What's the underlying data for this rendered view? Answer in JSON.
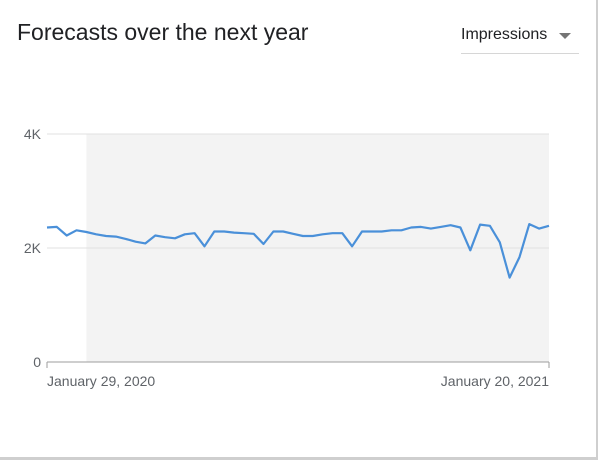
{
  "card": {
    "title": "Forecasts over the next year",
    "metric_select": {
      "selected": "Impressions",
      "icon": "caret-down-icon"
    }
  },
  "chart_data": {
    "type": "line",
    "title": "",
    "xlabel": "",
    "ylabel": "",
    "ylim": [
      0,
      4000
    ],
    "y_ticks": [
      {
        "value": 4000,
        "label": "4K"
      },
      {
        "value": 2000,
        "label": "2K"
      },
      {
        "value": 0,
        "label": "0"
      }
    ],
    "x_tick_labels": [
      "January 29, 2020",
      "January 20, 2021"
    ],
    "forecast_shading_start_index": 4,
    "grid": true,
    "legend": "none",
    "series": [
      {
        "color": "#4a90d9",
        "values": [
          2360,
          2370,
          2220,
          2310,
          2280,
          2240,
          2210,
          2200,
          2160,
          2110,
          2080,
          2220,
          2190,
          2170,
          2240,
          2260,
          2030,
          2290,
          2290,
          2270,
          2260,
          2250,
          2070,
          2290,
          2290,
          2250,
          2210,
          2210,
          2240,
          2260,
          2260,
          2030,
          2290,
          2290,
          2290,
          2310,
          2310,
          2360,
          2370,
          2340,
          2370,
          2400,
          2360,
          1960,
          2410,
          2390,
          2100,
          1480,
          1840,
          2420,
          2340,
          2390
        ]
      }
    ]
  }
}
